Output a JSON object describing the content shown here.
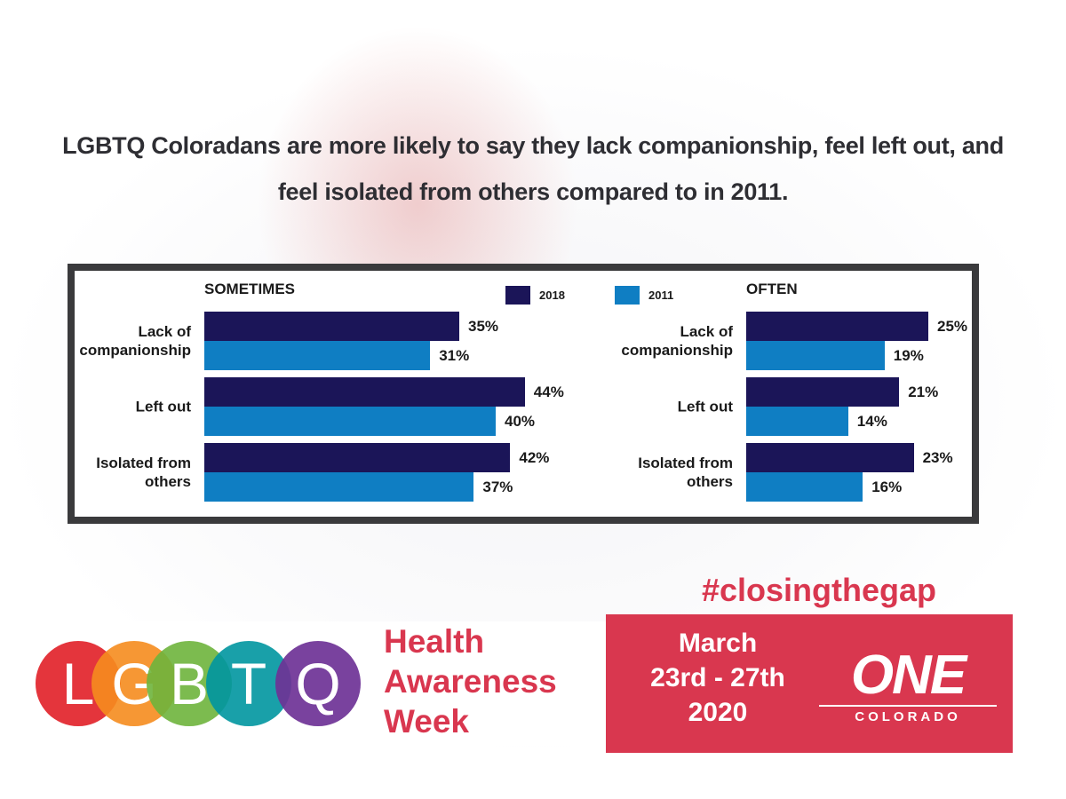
{
  "headline": "LGBTQ Coloradans are more likely to say they lack companionship, feel left out, and feel isolated from others compared to in 2011.",
  "chart_data": [
    {
      "type": "bar",
      "orientation": "horizontal",
      "title": "SOMETIMES",
      "categories": [
        "Lack of companionship",
        "Left out",
        "Isolated from others"
      ],
      "series": [
        {
          "name": "2018",
          "color": "#1b1558",
          "values": [
            35,
            44,
            42
          ],
          "value_labels": [
            "35%",
            "44%",
            "42%"
          ]
        },
        {
          "name": "2011",
          "color": "#0f7ec3",
          "values": [
            31,
            40,
            37
          ],
          "value_labels": [
            "31%",
            "40%",
            "37%"
          ]
        }
      ]
    },
    {
      "type": "bar",
      "orientation": "horizontal",
      "title": "OFTEN",
      "categories": [
        "Lack of companionship",
        "Left out",
        "Isolated from others"
      ],
      "series": [
        {
          "color": "#1b1558",
          "values": [
            25,
            21,
            23
          ],
          "value_labels": [
            "25%",
            "21%",
            "23%"
          ]
        },
        {
          "color": "#0f7ec3",
          "values": [
            19,
            14,
            16
          ],
          "value_labels": [
            "19%",
            "14%",
            "16%"
          ]
        }
      ]
    }
  ],
  "hashtag": "#closingthegap",
  "logo": {
    "letters": [
      "L",
      "G",
      "B",
      "T",
      "Q"
    ]
  },
  "event": {
    "name_lines": [
      "Health",
      "Awareness",
      "Week"
    ],
    "date_lines": [
      "March",
      "23rd - 27th",
      "2020"
    ]
  },
  "organization": {
    "name": "ONE",
    "subtitle": "COLORADO"
  }
}
